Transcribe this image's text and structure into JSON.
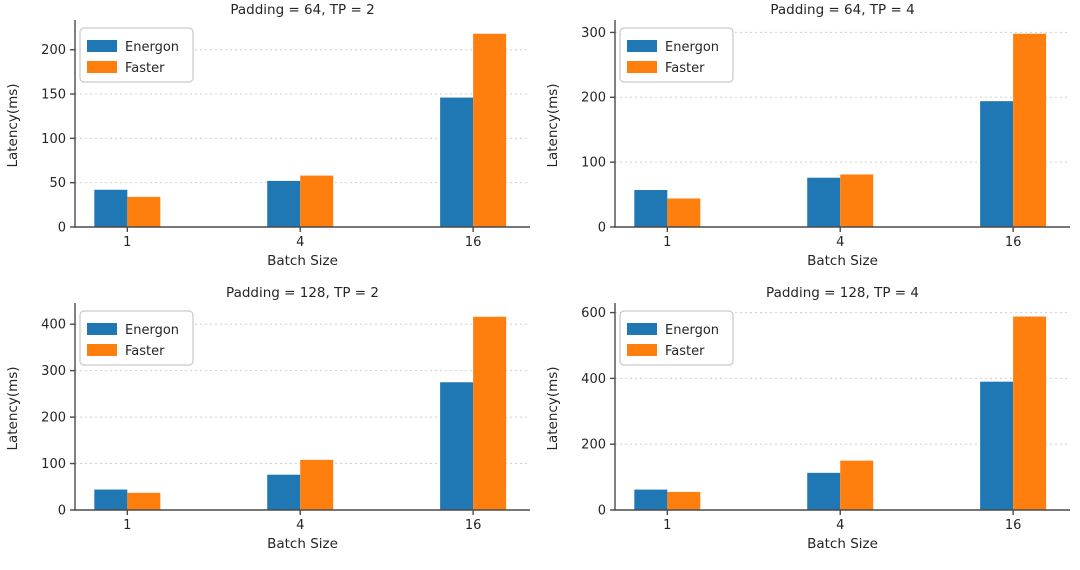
{
  "figure": {
    "background": "#ffffff",
    "text_color": "#262626",
    "axis_color": "#4a4a4a",
    "grid_color": "#cfcfcf",
    "legend_border_color": "#c9c9c9",
    "legend_fill": "#ffffff"
  },
  "chart_data": [
    {
      "type": "bar",
      "title": "Padding = 64, TP = 2",
      "xlabel": "Batch Size",
      "ylabel": "Latency(ms)",
      "categories": [
        "1",
        "4",
        "16"
      ],
      "series": [
        {
          "name": "Energon",
          "color": "#1f77b4",
          "values": [
            42,
            52,
            146
          ]
        },
        {
          "name": "Faster",
          "color": "#ff7f0e",
          "values": [
            34,
            58,
            218
          ]
        }
      ],
      "yticks": [
        0,
        50,
        100,
        150,
        200
      ],
      "ylim": [
        0,
        229
      ],
      "grid": true,
      "legend_position": "upper left"
    },
    {
      "type": "bar",
      "title": "Padding = 64, TP = 4",
      "xlabel": "Batch Size",
      "ylabel": "Latency(ms)",
      "categories": [
        "1",
        "4",
        "16"
      ],
      "series": [
        {
          "name": "Energon",
          "color": "#1f77b4",
          "values": [
            57,
            76,
            194
          ]
        },
        {
          "name": "Faster",
          "color": "#ff7f0e",
          "values": [
            44,
            81,
            298
          ]
        }
      ],
      "yticks": [
        0,
        100,
        200,
        300
      ],
      "ylim": [
        0,
        313
      ],
      "grid": true,
      "legend_position": "upper left"
    },
    {
      "type": "bar",
      "title": "Padding = 128, TP = 2",
      "xlabel": "Batch Size",
      "ylabel": "Latency(ms)",
      "categories": [
        "1",
        "4",
        "16"
      ],
      "series": [
        {
          "name": "Energon",
          "color": "#1f77b4",
          "values": [
            44,
            76,
            275
          ]
        },
        {
          "name": "Faster",
          "color": "#ff7f0e",
          "values": [
            37,
            108,
            416
          ]
        }
      ],
      "yticks": [
        0,
        100,
        200,
        300,
        400
      ],
      "ylim": [
        0,
        437
      ],
      "grid": true,
      "legend_position": "upper left"
    },
    {
      "type": "bar",
      "title": "Padding = 128, TP = 4",
      "xlabel": "Batch Size",
      "ylabel": "Latency(ms)",
      "categories": [
        "1",
        "4",
        "16"
      ],
      "series": [
        {
          "name": "Energon",
          "color": "#1f77b4",
          "values": [
            62,
            113,
            390
          ]
        },
        {
          "name": "Faster",
          "color": "#ff7f0e",
          "values": [
            55,
            150,
            588
          ]
        }
      ],
      "yticks": [
        0,
        200,
        400,
        600
      ],
      "ylim": [
        0,
        617
      ],
      "grid": true,
      "legend_position": "upper left"
    }
  ]
}
